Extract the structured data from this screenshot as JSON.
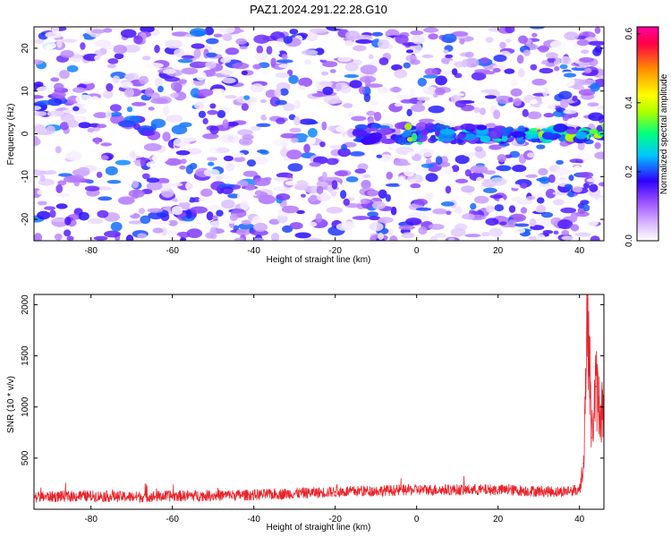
{
  "title": "PAZ1.2024.291.22.28.G10",
  "chart_data": [
    {
      "type": "heatmap",
      "xlabel": "Height of straight line (km)",
      "ylabel": "Frequency (Hz)",
      "xlim": [
        -94,
        46
      ],
      "ylim": [
        -25,
        25
      ],
      "x_ticks": [
        -80,
        -60,
        -40,
        -20,
        0,
        20,
        40
      ],
      "y_ticks": [
        -20,
        -10,
        0,
        10,
        20
      ],
      "colorbar": {
        "label": "Normalized spectral amplitude",
        "range": [
          0.0,
          0.62
        ],
        "ticks": [
          0.0,
          0.2,
          0.4,
          0.6
        ],
        "colormap": [
          "#ffffff",
          "#9d52ff",
          "#2e00ff",
          "#00c8ff",
          "#00ff80",
          "#aaff00",
          "#ffff00",
          "#ff9000",
          "#ff0044",
          "#ff00a0"
        ]
      },
      "features": {
        "background_amplitude": [
          0.0,
          0.15
        ],
        "signal_band": {
          "x_range": [
            -15,
            46
          ],
          "freq_center": 0,
          "peak_amplitude": 0.38
        }
      }
    },
    {
      "type": "line",
      "xlabel": "Height of straight line (km)",
      "ylabel": "SNR (10 * v/v)",
      "xlim": [
        -94,
        46
      ],
      "ylim": [
        0,
        2100
      ],
      "x_ticks": [
        -80,
        -60,
        -40,
        -20,
        0,
        20,
        40
      ],
      "y_ticks": [
        500,
        1000,
        1500,
        2000
      ],
      "color": "#e8242b",
      "series": [
        {
          "x": [
            -94,
            -80,
            -70,
            -60,
            -40,
            -20,
            0,
            20,
            35,
            40,
            41,
            42,
            43,
            44,
            45,
            46
          ],
          "y": [
            120,
            130,
            120,
            130,
            140,
            170,
            190,
            190,
            170,
            190,
            450,
            2050,
            700,
            1200,
            1000,
            950
          ]
        }
      ]
    }
  ]
}
